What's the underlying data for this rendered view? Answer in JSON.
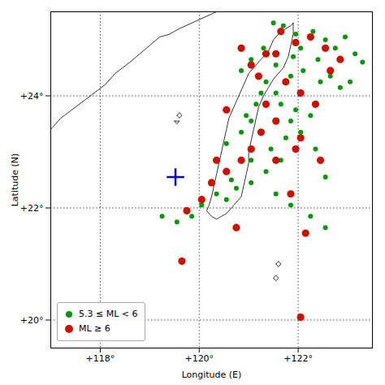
{
  "chart_data": {
    "type": "scatter",
    "xlabel": "Longitude (E)",
    "ylabel": "Latitude (N)",
    "xlim": [
      117.0,
      123.5
    ],
    "ylim": [
      19.5,
      25.5
    ],
    "xticks": [
      {
        "value": 118,
        "label": "+118°"
      },
      {
        "value": 120,
        "label": "+120°"
      },
      {
        "value": 122,
        "label": "+122°"
      }
    ],
    "yticks": [
      {
        "value": 20,
        "label": "+20°"
      },
      {
        "value": 22,
        "label": "+22°"
      },
      {
        "value": 24,
        "label": "+24°"
      }
    ],
    "grid": true,
    "legend": "lower left",
    "series": [
      {
        "type": "line",
        "color": "#000000",
        "values": [
          [
            121.9,
            25.3
          ],
          [
            121.85,
            25.25
          ],
          [
            121.75,
            25.2
          ],
          [
            121.6,
            25.1
          ],
          [
            121.5,
            25.0
          ],
          [
            121.45,
            24.9
          ],
          [
            121.4,
            24.8
          ],
          [
            121.3,
            24.7
          ],
          [
            121.2,
            24.6
          ],
          [
            121.1,
            24.5
          ],
          [
            121.0,
            24.4
          ],
          [
            120.95,
            24.3
          ],
          [
            120.9,
            24.2
          ],
          [
            120.85,
            24.1
          ],
          [
            120.8,
            24.0
          ],
          [
            120.75,
            23.9
          ],
          [
            120.7,
            23.8
          ],
          [
            120.6,
            23.6
          ],
          [
            120.55,
            23.4
          ],
          [
            120.5,
            23.2
          ],
          [
            120.45,
            23.0
          ],
          [
            120.4,
            22.8
          ],
          [
            120.35,
            22.6
          ],
          [
            120.3,
            22.4
          ],
          [
            120.25,
            22.2
          ],
          [
            120.2,
            22.05
          ],
          [
            120.15,
            21.95
          ],
          [
            120.25,
            21.85
          ],
          [
            120.35,
            21.8
          ],
          [
            120.45,
            21.85
          ],
          [
            120.55,
            21.9
          ],
          [
            120.65,
            22.0
          ],
          [
            120.75,
            22.1
          ],
          [
            120.85,
            22.2
          ],
          [
            120.9,
            22.4
          ],
          [
            120.95,
            22.6
          ],
          [
            121.0,
            22.8
          ],
          [
            121.0,
            23.0
          ],
          [
            121.05,
            23.2
          ],
          [
            121.1,
            23.4
          ],
          [
            121.15,
            23.6
          ],
          [
            121.2,
            23.8
          ],
          [
            121.3,
            24.0
          ],
          [
            121.4,
            24.15
          ],
          [
            121.5,
            24.3
          ],
          [
            121.6,
            24.4
          ],
          [
            121.7,
            24.5
          ],
          [
            121.75,
            24.6
          ],
          [
            121.8,
            24.7
          ],
          [
            121.85,
            24.9
          ],
          [
            121.9,
            25.1
          ],
          [
            121.9,
            25.3
          ]
        ]
      },
      {
        "type": "line",
        "color": "#000000",
        "values": [
          [
            120.35,
            25.5
          ],
          [
            120.1,
            25.4
          ],
          [
            119.85,
            25.3
          ],
          [
            119.6,
            25.2
          ],
          [
            119.4,
            25.1
          ],
          [
            119.2,
            25.05
          ],
          [
            119.0,
            24.9
          ],
          [
            118.8,
            24.75
          ],
          [
            118.6,
            24.6
          ],
          [
            118.45,
            24.5
          ],
          [
            118.3,
            24.4
          ],
          [
            118.2,
            24.3
          ],
          [
            118.1,
            24.2
          ],
          [
            117.95,
            24.1
          ],
          [
            117.8,
            24.0
          ],
          [
            117.65,
            23.9
          ],
          [
            117.5,
            23.8
          ],
          [
            117.35,
            23.7
          ],
          [
            117.2,
            23.6
          ],
          [
            117.1,
            23.5
          ],
          [
            117.0,
            23.4
          ]
        ]
      },
      {
        "type": "line",
        "color": "#000000",
        "values": [
          [
            119.55,
            23.65
          ],
          [
            119.6,
            23.6
          ],
          [
            119.65,
            23.65
          ],
          [
            119.6,
            23.7
          ],
          [
            119.55,
            23.65
          ]
        ]
      },
      {
        "type": "line",
        "color": "#000000",
        "values": [
          [
            119.5,
            23.55
          ],
          [
            119.55,
            23.5
          ],
          [
            119.6,
            23.55
          ],
          [
            119.5,
            23.55
          ]
        ]
      },
      {
        "type": "line",
        "color": "#000000",
        "values": [
          [
            121.55,
            21.0
          ],
          [
            121.6,
            20.95
          ],
          [
            121.65,
            21.0
          ],
          [
            121.6,
            21.05
          ],
          [
            121.55,
            21.0
          ]
        ]
      },
      {
        "type": "line",
        "color": "#000000",
        "values": [
          [
            121.5,
            20.75
          ],
          [
            121.55,
            20.7
          ],
          [
            121.6,
            20.75
          ],
          [
            121.55,
            20.8
          ],
          [
            121.5,
            20.75
          ]
        ]
      },
      {
        "type": "scatter",
        "name": "5.3 ≤ ML < 6",
        "color": "#009900",
        "marker": "circle",
        "values": [
          [
            121.5,
            25.3
          ],
          [
            121.7,
            25.25
          ],
          [
            121.95,
            25.1
          ],
          [
            122.3,
            25.15
          ],
          [
            122.55,
            25.0
          ],
          [
            122.75,
            24.85
          ],
          [
            122.95,
            25.05
          ],
          [
            123.15,
            24.75
          ],
          [
            123.3,
            24.6
          ],
          [
            121.3,
            24.85
          ],
          [
            121.05,
            24.65
          ],
          [
            120.85,
            24.45
          ],
          [
            121.55,
            24.55
          ],
          [
            121.85,
            24.35
          ],
          [
            122.1,
            24.45
          ],
          [
            122.45,
            24.25
          ],
          [
            122.65,
            24.35
          ],
          [
            122.85,
            24.15
          ],
          [
            123.05,
            24.25
          ],
          [
            121.25,
            24.05
          ],
          [
            121.65,
            23.85
          ],
          [
            121.95,
            23.75
          ],
          [
            122.25,
            23.65
          ],
          [
            122.05,
            23.35
          ],
          [
            121.75,
            23.25
          ],
          [
            121.45,
            23.05
          ],
          [
            121.65,
            22.85
          ],
          [
            121.35,
            22.65
          ],
          [
            121.05,
            22.45
          ],
          [
            120.75,
            22.35
          ],
          [
            120.55,
            22.15
          ],
          [
            120.35,
            22.25
          ],
          [
            120.05,
            22.05
          ],
          [
            119.85,
            21.85
          ],
          [
            119.55,
            21.75
          ],
          [
            121.85,
            22.05
          ],
          [
            122.25,
            21.85
          ],
          [
            122.55,
            21.65
          ],
          [
            121.05,
            23.55
          ],
          [
            120.85,
            23.35
          ],
          [
            120.55,
            23.15
          ],
          [
            121.35,
            24.25
          ],
          [
            121.15,
            23.85
          ],
          [
            120.95,
            23.65
          ],
          [
            122.05,
            24.85
          ],
          [
            121.55,
            24.05
          ],
          [
            121.85,
            23.55
          ],
          [
            122.35,
            23.05
          ],
          [
            122.55,
            22.55
          ],
          [
            121.05,
            22.85
          ],
          [
            119.25,
            21.85
          ],
          [
            121.55,
            22.25
          ],
          [
            121.9,
            24.7
          ],
          [
            122.4,
            24.65
          ],
          [
            120.65,
            22.5
          ]
        ]
      },
      {
        "type": "scatter",
        "name": "ML ≥ 6",
        "color": "#cc1100",
        "marker": "circle",
        "values": [
          [
            121.65,
            25.15
          ],
          [
            121.95,
            24.95
          ],
          [
            122.25,
            25.05
          ],
          [
            122.55,
            24.85
          ],
          [
            122.85,
            24.65
          ],
          [
            121.35,
            24.75
          ],
          [
            121.05,
            24.55
          ],
          [
            121.75,
            24.25
          ],
          [
            122.05,
            24.05
          ],
          [
            122.35,
            23.85
          ],
          [
            121.55,
            23.55
          ],
          [
            121.25,
            23.35
          ],
          [
            121.05,
            23.05
          ],
          [
            120.85,
            22.85
          ],
          [
            120.55,
            22.65
          ],
          [
            120.25,
            22.45
          ],
          [
            120.05,
            22.15
          ],
          [
            119.75,
            21.95
          ],
          [
            121.85,
            22.25
          ],
          [
            122.15,
            21.55
          ],
          [
            121.55,
            22.85
          ],
          [
            121.35,
            23.85
          ],
          [
            122.05,
            23.25
          ],
          [
            122.45,
            22.85
          ],
          [
            120.75,
            21.65
          ],
          [
            122.05,
            20.05
          ],
          [
            120.85,
            24.85
          ],
          [
            121.55,
            24.75
          ],
          [
            122.65,
            24.45
          ],
          [
            121.95,
            23.05
          ],
          [
            120.35,
            22.85
          ],
          [
            119.65,
            21.05
          ],
          [
            120.55,
            23.75
          ],
          [
            121.2,
            24.35
          ]
        ]
      },
      {
        "type": "scatter",
        "color": "#0000cc",
        "marker": "plus",
        "values": [
          [
            119.52,
            22.55
          ]
        ]
      }
    ]
  }
}
